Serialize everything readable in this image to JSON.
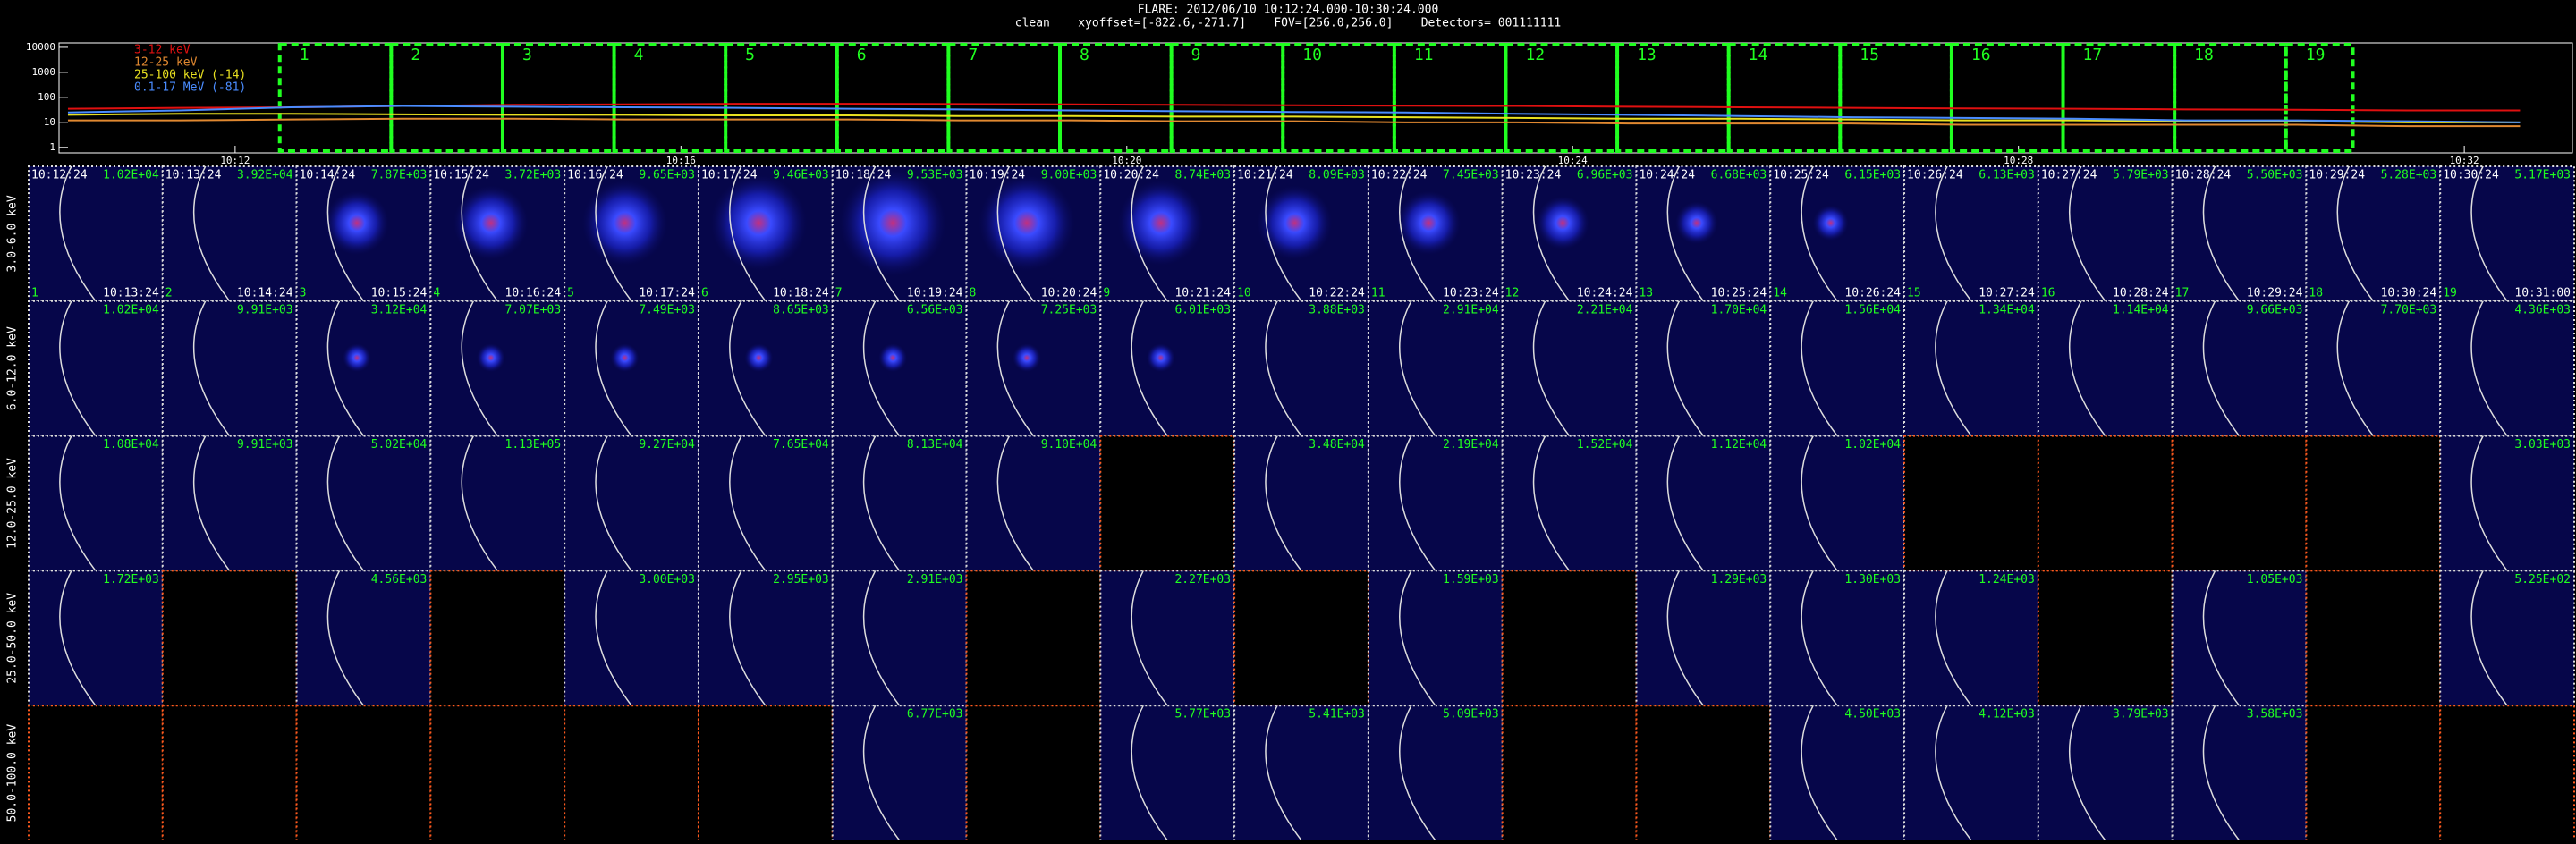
{
  "header": {
    "line1": "FLARE: 2012/06/10 10:12:24.000-10:30:24.000",
    "line2": "clean    xyoffset=[-822.6,-271.7]    FOV=[256.0,256.0]    Detectors= 001111111"
  },
  "lightcurve": {
    "type": "line",
    "log_y": true,
    "ylim": [
      0.6,
      15000
    ],
    "yticks": [
      1,
      10,
      100,
      1000,
      10000
    ],
    "xlim": [
      610.42,
      632.97
    ],
    "xticks": [
      {
        "value": 612,
        "label": "10:12"
      },
      {
        "value": 616,
        "label": "10:16"
      },
      {
        "value": 620,
        "label": "10:20"
      },
      {
        "value": 624,
        "label": "10:24"
      },
      {
        "value": 628,
        "label": "10:28"
      },
      {
        "value": 632,
        "label": "10:32"
      }
    ],
    "x": [
      610.5,
      611.5,
      612.5,
      613.5,
      614.5,
      615.5,
      616.5,
      617.5,
      618.5,
      619.5,
      620.5,
      621.5,
      622.5,
      623.5,
      624.5,
      625.5,
      626.5,
      627.5,
      628.5,
      629.5,
      630.5,
      631.5,
      632.5
    ],
    "series": [
      {
        "name": "3-12 keV",
        "color": "#e01010",
        "values": [
          35,
          38,
          40,
          45,
          50,
          52,
          55,
          55,
          54,
          52,
          50,
          48,
          46,
          45,
          42,
          40,
          38,
          36,
          35,
          33,
          32,
          30,
          30
        ]
      },
      {
        "name": "12-25 keV",
        "color": "#e08830",
        "values": [
          12,
          12,
          13,
          14,
          14,
          13,
          13,
          13,
          12,
          12,
          11,
          11,
          10,
          10,
          9,
          9,
          9,
          8,
          8,
          8,
          8,
          7,
          7
        ]
      },
      {
        "name": "25-100 keV (-14)",
        "color": "#e8e020",
        "values": [
          20,
          22,
          22,
          21,
          20,
          20,
          19,
          19,
          18,
          18,
          17,
          17,
          16,
          15,
          14,
          14,
          13,
          12,
          12,
          11,
          11,
          10,
          10
        ]
      },
      {
        "name": "0.1-17 MeV (-81)",
        "color": "#4a8cff",
        "values": [
          25,
          30,
          40,
          45,
          42,
          40,
          38,
          35,
          33,
          30,
          28,
          26,
          25,
          22,
          20,
          18,
          16,
          15,
          14,
          12,
          12,
          11,
          10
        ]
      }
    ],
    "intervals": [
      1,
      2,
      3,
      4,
      5,
      6,
      7,
      8,
      9,
      10,
      11,
      12,
      13,
      14,
      15,
      16,
      17,
      18,
      19
    ]
  },
  "cells": {
    "start": [
      "10:12:24",
      "10:13:24",
      "10:14:24",
      "10:15:24",
      "10:16:24",
      "10:17:24",
      "10:18:24",
      "10:19:24",
      "10:20:24",
      "10:21:24",
      "10:22:24",
      "10:23:24",
      "10:24:24",
      "10:25:24",
      "10:26:24",
      "10:27:24",
      "10:28:24",
      "10:29:24",
      "10:30:24"
    ],
    "end": [
      "10:13:24",
      "10:14:24",
      "10:15:24",
      "10:16:24",
      "10:17:24",
      "10:18:24",
      "10:19:24",
      "10:20:24",
      "10:21:24",
      "10:22:24",
      "10:23:24",
      "10:24:24",
      "10:25:24",
      "10:26:24",
      "10:27:24",
      "10:28:24",
      "10:29:24",
      "10:30:24",
      "10:31:00"
    ],
    "rows": [
      {
        "label": "3.0-6.0 keV",
        "max": [
          "1.02E+04",
          "3.92E+04",
          "7.87E+03",
          "3.72E+03",
          "9.65E+03",
          "9.46E+03",
          "9.53E+03",
          "9.00E+03",
          "8.74E+03",
          "8.09E+03",
          "7.45E+03",
          "6.96E+03",
          "6.68E+03",
          "6.15E+03",
          "6.13E+03",
          "5.79E+03",
          "5.50E+03",
          "5.28E+03",
          "5.17E+03"
        ]
      },
      {
        "label": "6.0-12.0 keV",
        "max": [
          "1.02E+04",
          "9.91E+03",
          "3.12E+04",
          "7.07E+03",
          "7.49E+03",
          "8.65E+03",
          "6.56E+03",
          "7.25E+03",
          "6.01E+03",
          "3.88E+03",
          "2.91E+04",
          "2.21E+04",
          "1.70E+04",
          "1.56E+04",
          "1.34E+04",
          "1.14E+04",
          "9.66E+03",
          "7.70E+03",
          "4.36E+03"
        ]
      },
      {
        "label": "12.0-25.0 keV",
        "max": [
          "1.08E+04",
          "9.91E+03",
          "5.02E+04",
          "1.13E+05",
          "9.27E+04",
          "7.65E+04",
          "8.13E+04",
          "9.10E+04",
          null,
          "3.48E+04",
          "2.19E+04",
          "1.52E+04",
          "1.12E+04",
          "1.02E+04",
          null,
          null,
          null,
          null,
          "3.03E+03"
        ]
      },
      {
        "label": "25.0-50.0 keV",
        "max": [
          "1.72E+03",
          null,
          "4.56E+03",
          null,
          "3.00E+03",
          "2.95E+03",
          "2.91E+03",
          null,
          "2.27E+03",
          null,
          "1.59E+03",
          null,
          "1.29E+03",
          "1.30E+03",
          "1.24E+03",
          null,
          "1.05E+03",
          null,
          "5.25E+02"
        ]
      },
      {
        "label": "50.0-100.0 keV",
        "max": [
          null,
          null,
          null,
          null,
          null,
          null,
          "6.77E+03",
          null,
          "5.77E+03",
          "5.41E+03",
          "5.09E+03",
          null,
          null,
          "4.50E+03",
          "4.12E+03",
          "3.79E+03",
          "3.58E+03",
          null,
          null
        ]
      }
    ]
  }
}
